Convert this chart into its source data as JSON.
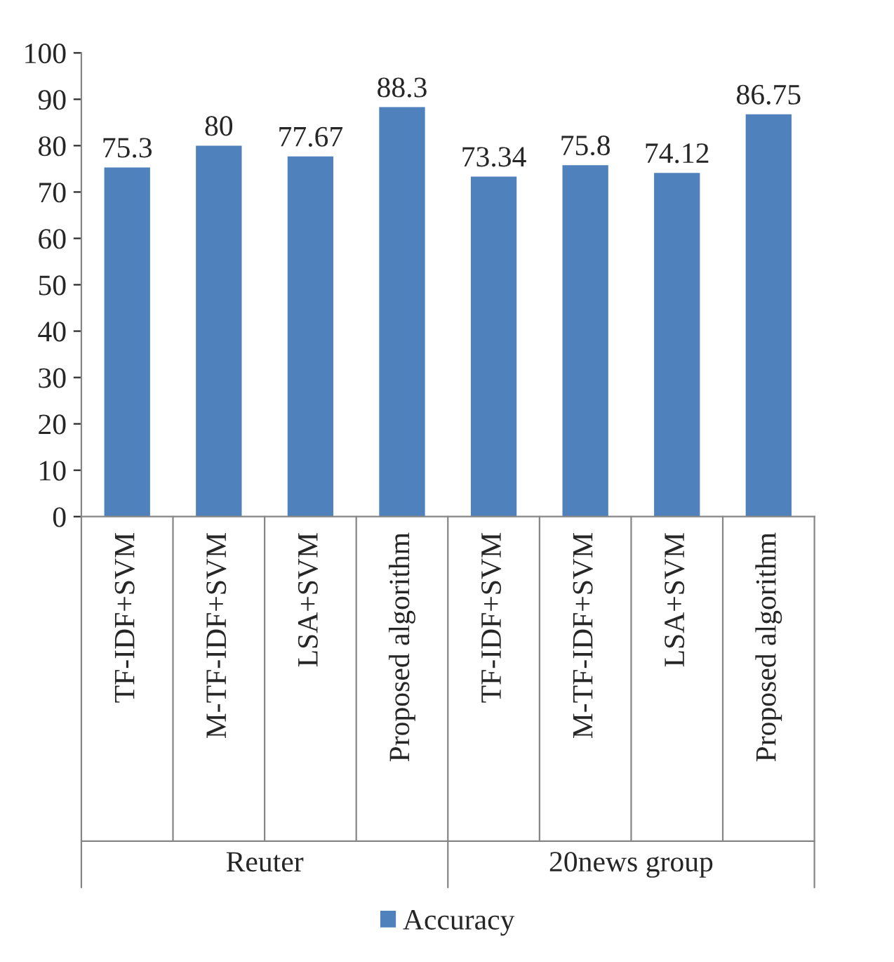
{
  "chart_data": {
    "type": "bar",
    "categories": [
      "TF-IDF+SVM",
      "M-TF-IDF+SVM",
      "LSA+SVM",
      "Proposed algorithm",
      "TF-IDF+SVM",
      "M-TF-IDF+SVM",
      "LSA+SVM",
      "Proposed algorithm"
    ],
    "series": [
      {
        "name": "Accuracy",
        "color": "#4f81bd",
        "values": [
          75.3,
          80,
          77.67,
          88.3,
          73.34,
          75.8,
          74.12,
          86.75
        ]
      }
    ],
    "ylim": [
      0,
      100
    ],
    "yticks": [
      0,
      10,
      20,
      30,
      40,
      50,
      60,
      70,
      80,
      90,
      100
    ],
    "data_labels": true,
    "legend": "bottom",
    "annotations": [
      "Reuter",
      "20news group"
    ]
  }
}
